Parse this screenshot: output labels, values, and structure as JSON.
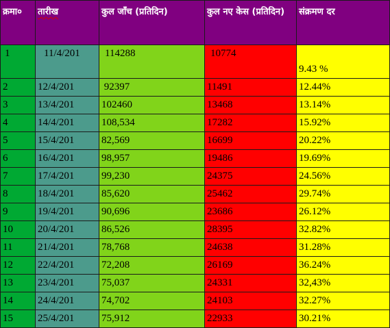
{
  "colors": {
    "header": "#800080",
    "serial": "#00a933",
    "date": "#4c9b8c",
    "tests": "#81d41a",
    "cases": "#ff0000",
    "rate": "#ffff00"
  },
  "headers": {
    "serial": "क्रमा०",
    "date": "तारीख",
    "tests": "कुल जाँच (प्रतिदिन)",
    "cases": "कुल नए केस (प्रतिदिन)",
    "rate": "संक्रमण दर"
  },
  "rows": [
    {
      "sn": "1",
      "date": "11/4/201",
      "tests": "114288",
      "cases": "10774",
      "rate": "9.43 %"
    },
    {
      "sn": "2",
      "date": "12/4/201",
      "tests": " 92397",
      "cases": "11491",
      "rate": "12.44%"
    },
    {
      "sn": "3",
      "date": "13/4/201",
      "tests": "102460",
      "cases": "13468",
      "rate": "13.14%"
    },
    {
      "sn": "4",
      "date": "14/4/201",
      "tests": "108,534",
      "cases": "17282",
      "rate": "15.92%"
    },
    {
      "sn": "5",
      "date": "15/4/201",
      "tests": "82,569",
      "cases": "16699",
      "rate": "20.22%"
    },
    {
      "sn": "6",
      "date": "16/4/201",
      "tests": "98,957",
      "cases": "19486",
      "rate": "19.69%"
    },
    {
      "sn": "7",
      "date": "17/4/201",
      "tests": "99,230",
      "cases": "24375",
      "rate": "24.56%"
    },
    {
      "sn": "8",
      "date": "18/4/201",
      "tests": "85,620",
      "cases": "25462",
      "rate": "29.74%"
    },
    {
      "sn": "9",
      "date": "19/4/201",
      "tests": "90,696",
      "cases": "23686",
      "rate": "26.12%"
    },
    {
      "sn": "10",
      "date": "20/4/201",
      "tests": "86,526",
      "cases": "28395",
      "rate": "32.82%"
    },
    {
      "sn": "11",
      "date": "21/4/201",
      "tests": "78,768",
      "cases": "24638",
      "rate": "31.28%"
    },
    {
      "sn": "12",
      "date": "22/4/201",
      "tests": "72,208",
      "cases": "26169",
      "rate": "36.24%"
    },
    {
      "sn": "13",
      "date": "23/4/201",
      "tests": "75,037",
      "cases": "24331",
      "rate": "32,43%"
    },
    {
      "sn": "14",
      "date": "24/4/201",
      "tests": "74,702",
      "cases": "24103",
      "rate": "32.27%"
    },
    {
      "sn": "15",
      "date": "25/4/201",
      "tests": "75,912",
      "cases": "22933",
      "rate": "30.21%"
    }
  ]
}
